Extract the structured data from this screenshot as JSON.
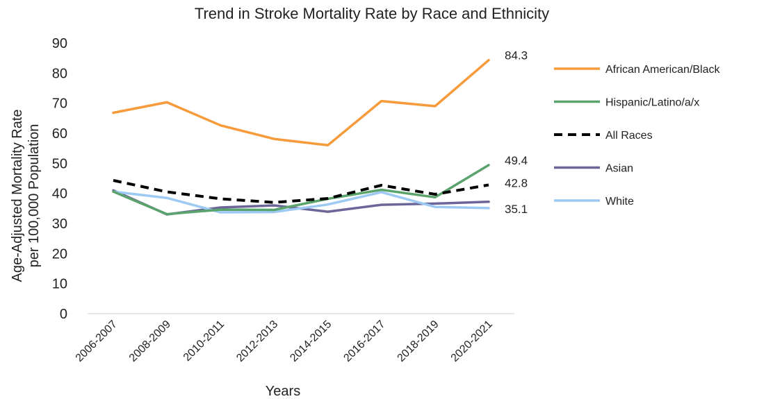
{
  "chart_data": {
    "type": "line",
    "title": "Trend in Stroke Mortality Rate by Race and Ethnicity",
    "xlabel": "Years",
    "ylabel_lines": [
      "Age-Adjusted Mortality Rate",
      "per 100,000 Population"
    ],
    "ylim": [
      0,
      90
    ],
    "yticks": [
      "0",
      "10",
      "20",
      "30",
      "40",
      "50",
      "60",
      "70",
      "80",
      "90"
    ],
    "categories": [
      "2006-2007",
      "2008-2009",
      "2010-2011",
      "2012-2013",
      "2014-2015",
      "2016-2017",
      "2018-2019",
      "2020-2021"
    ],
    "grid": false,
    "legend_position": "right",
    "series": [
      {
        "name": "African American/Black",
        "color": "#F79A3A",
        "dash": "solid",
        "values": [
          66.8,
          70.3,
          62.6,
          58.1,
          56.0,
          70.7,
          69.0,
          84.3
        ]
      },
      {
        "name": "Hispanic/Latino/a/x",
        "color": "#5BA36C",
        "dash": "solid",
        "values": [
          40.6,
          33.1,
          34.6,
          34.5,
          38.2,
          41.2,
          38.7,
          49.4
        ]
      },
      {
        "name": "All Races",
        "color": "#000000",
        "dash": "dashed",
        "values": [
          44.3,
          40.5,
          38.2,
          37.0,
          38.3,
          42.7,
          39.7,
          42.8
        ]
      },
      {
        "name": "Asian",
        "color": "#6A6698",
        "dash": "solid",
        "values": [
          41.0,
          33.0,
          35.3,
          36.0,
          33.9,
          36.2,
          36.6,
          37.2
        ]
      },
      {
        "name": "White",
        "color": "#9DC9F2",
        "dash": "solid",
        "values": [
          40.6,
          38.5,
          33.7,
          33.8,
          36.3,
          40.4,
          35.5,
          35.1
        ]
      }
    ],
    "end_labels": [
      {
        "series": "African American/Black",
        "text": "84.3"
      },
      {
        "series": "Hispanic/Latino/a/x",
        "text": "49.4"
      },
      {
        "series": "All Races",
        "text": "42.8"
      },
      {
        "series": "White",
        "text": "35.1"
      }
    ]
  }
}
